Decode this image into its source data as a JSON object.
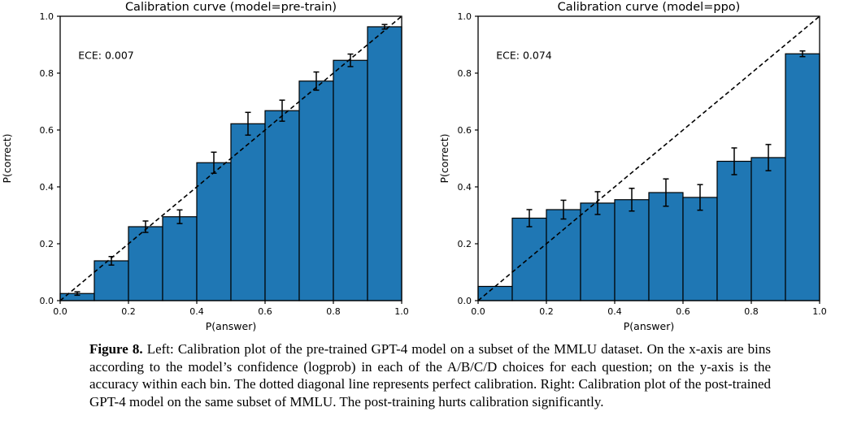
{
  "figure": {
    "caption_label": "Figure 8.",
    "caption_text": "Left: Calibration plot of the pre-trained GPT-4 model on a subset of the MMLU dataset. On the x-axis are bins according to the model’s confidence (logprob) in each of the A/B/C/D choices for each question; on the y-axis is the accuracy within each bin. The dotted diagonal line represents perfect calibration. Right: Calibration plot of the post-trained GPT-4 model on the same subset of MMLU. The post-training hurts calibration significantly."
  },
  "colors": {
    "bar_fill": "#1f77b4",
    "bar_edge": "#000000",
    "diagonal": "#000000",
    "text": "#000000",
    "background": "#ffffff"
  },
  "chart_data": [
    {
      "type": "bar",
      "title": "Calibration curve (model=pre-train)",
      "annotation": "ECE: 0.007",
      "annotation_pos": [
        0.053,
        0.85
      ],
      "xlabel": "P(answer)",
      "ylabel": "P(correct)",
      "xlim": [
        0.0,
        1.0
      ],
      "ylim": [
        0.0,
        1.0
      ],
      "xticks": [
        0.0,
        0.2,
        0.4,
        0.6,
        0.8,
        1.0
      ],
      "yticks": [
        0.0,
        0.2,
        0.4,
        0.6,
        0.8,
        1.0
      ],
      "grid": false,
      "diagonal": true,
      "bin_edges": [
        0.0,
        0.1,
        0.2,
        0.3,
        0.4,
        0.5,
        0.6,
        0.7,
        0.8,
        0.9,
        1.0
      ],
      "values": [
        0.025,
        0.14,
        0.26,
        0.295,
        0.485,
        0.622,
        0.668,
        0.772,
        0.845,
        0.963
      ],
      "errors": [
        0.006,
        0.015,
        0.02,
        0.024,
        0.037,
        0.04,
        0.037,
        0.032,
        0.022,
        0.008
      ]
    },
    {
      "type": "bar",
      "title": "Calibration curve (model=ppo)",
      "annotation": "ECE: 0.074",
      "annotation_pos": [
        0.053,
        0.85
      ],
      "xlabel": "P(answer)",
      "ylabel": "P(correct)",
      "xlim": [
        0.0,
        1.0
      ],
      "ylim": [
        0.0,
        1.0
      ],
      "xticks": [
        0.0,
        0.2,
        0.4,
        0.6,
        0.8,
        1.0
      ],
      "yticks": [
        0.0,
        0.2,
        0.4,
        0.6,
        0.8,
        1.0
      ],
      "grid": false,
      "diagonal": true,
      "bin_edges": [
        0.0,
        0.1,
        0.2,
        0.3,
        0.4,
        0.5,
        0.6,
        0.7,
        0.8,
        0.9,
        1.0
      ],
      "values": [
        0.05,
        0.29,
        0.32,
        0.343,
        0.355,
        0.38,
        0.363,
        0.49,
        0.503,
        0.868
      ],
      "errors": [
        0,
        0.03,
        0.033,
        0.04,
        0.04,
        0.048,
        0.045,
        0.047,
        0.046,
        0.01
      ]
    }
  ]
}
